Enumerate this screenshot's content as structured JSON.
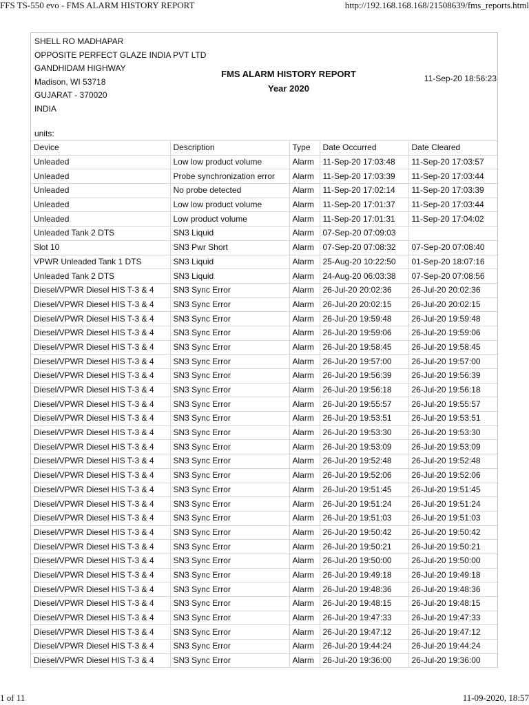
{
  "print_header": {
    "title": "FFS TS-550 evo - FMS ALARM HISTORY REPORT",
    "url": "http://192.168.168.168/21508639/fms_reports.html"
  },
  "print_footer": {
    "page": "1 of 11",
    "datetime": "11-09-2020, 18:57"
  },
  "report": {
    "address": [
      "SHELL RO MADHAPAR",
      "OPPOSITE PERFECT GLAZE INDIA PVT LTD",
      "GANDHIDAM HIGHWAY",
      "Madison, WI 53718",
      "GUJARAT - 370020",
      "INDIA"
    ],
    "title": "FMS ALARM HISTORY REPORT",
    "year": "Year 2020",
    "generated": "11-Sep-20 18:56:23",
    "units": "units:"
  },
  "table": {
    "columns": [
      "Device",
      "Description",
      "Type",
      "Date Occurred",
      "Date Cleared"
    ],
    "rows": [
      [
        "Unleaded",
        "Low low product volume",
        "Alarm",
        "11-Sep-20 17:03:48",
        "11-Sep-20 17:03:57"
      ],
      [
        "Unleaded",
        "Probe synchronization error",
        "Alarm",
        "11-Sep-20 17:03:39",
        "11-Sep-20 17:03:44"
      ],
      [
        "Unleaded",
        "No probe detected",
        "Alarm",
        "11-Sep-20 17:02:14",
        "11-Sep-20 17:03:39"
      ],
      [
        "Unleaded",
        "Low low product volume",
        "Alarm",
        "11-Sep-20 17:01:37",
        "11-Sep-20 17:03:44"
      ],
      [
        "Unleaded",
        "Low product volume",
        "Alarm",
        "11-Sep-20 17:01:31",
        "11-Sep-20 17:04:02"
      ],
      [
        "Unleaded Tank 2 DTS",
        "SN3 Liquid",
        "Alarm",
        "07-Sep-20 07:09:03",
        ""
      ],
      [
        "Slot 10",
        "SN3 Pwr Short",
        "Alarm",
        "07-Sep-20 07:08:32",
        "07-Sep-20 07:08:40"
      ],
      [
        "VPWR Unleaded Tank 1 DTS",
        "SN3 Liquid",
        "Alarm",
        "25-Aug-20 10:22:50",
        "01-Sep-20 18:07:16"
      ],
      [
        "Unleaded Tank 2 DTS",
        "SN3 Liquid",
        "Alarm",
        "24-Aug-20 06:03:38",
        "07-Sep-20 07:08:56"
      ],
      [
        "Diesel/VPWR Diesel HIS T-3 & 4",
        "SN3 Sync Error",
        "Alarm",
        "26-Jul-20 20:02:36",
        "26-Jul-20 20:02:36"
      ],
      [
        "Diesel/VPWR Diesel HIS T-3 & 4",
        "SN3 Sync Error",
        "Alarm",
        "26-Jul-20 20:02:15",
        "26-Jul-20 20:02:15"
      ],
      [
        "Diesel/VPWR Diesel HIS T-3 & 4",
        "SN3 Sync Error",
        "Alarm",
        "26-Jul-20 19:59:48",
        "26-Jul-20 19:59:48"
      ],
      [
        "Diesel/VPWR Diesel HIS T-3 & 4",
        "SN3 Sync Error",
        "Alarm",
        "26-Jul-20 19:59:06",
        "26-Jul-20 19:59:06"
      ],
      [
        "Diesel/VPWR Diesel HIS T-3 & 4",
        "SN3 Sync Error",
        "Alarm",
        "26-Jul-20 19:58:45",
        "26-Jul-20 19:58:45"
      ],
      [
        "Diesel/VPWR Diesel HIS T-3 & 4",
        "SN3 Sync Error",
        "Alarm",
        "26-Jul-20 19:57:00",
        "26-Jul-20 19:57:00"
      ],
      [
        "Diesel/VPWR Diesel HIS T-3 & 4",
        "SN3 Sync Error",
        "Alarm",
        "26-Jul-20 19:56:39",
        "26-Jul-20 19:56:39"
      ],
      [
        "Diesel/VPWR Diesel HIS T-3 & 4",
        "SN3 Sync Error",
        "Alarm",
        "26-Jul-20 19:56:18",
        "26-Jul-20 19:56:18"
      ],
      [
        "Diesel/VPWR Diesel HIS T-3 & 4",
        "SN3 Sync Error",
        "Alarm",
        "26-Jul-20 19:55:57",
        "26-Jul-20 19:55:57"
      ],
      [
        "Diesel/VPWR Diesel HIS T-3 & 4",
        "SN3 Sync Error",
        "Alarm",
        "26-Jul-20 19:53:51",
        "26-Jul-20 19:53:51"
      ],
      [
        "Diesel/VPWR Diesel HIS T-3 & 4",
        "SN3 Sync Error",
        "Alarm",
        "26-Jul-20 19:53:30",
        "26-Jul-20 19:53:30"
      ],
      [
        "Diesel/VPWR Diesel HIS T-3 & 4",
        "SN3 Sync Error",
        "Alarm",
        "26-Jul-20 19:53:09",
        "26-Jul-20 19:53:09"
      ],
      [
        "Diesel/VPWR Diesel HIS T-3 & 4",
        "SN3 Sync Error",
        "Alarm",
        "26-Jul-20 19:52:48",
        "26-Jul-20 19:52:48"
      ],
      [
        "Diesel/VPWR Diesel HIS T-3 & 4",
        "SN3 Sync Error",
        "Alarm",
        "26-Jul-20 19:52:06",
        "26-Jul-20 19:52:06"
      ],
      [
        "Diesel/VPWR Diesel HIS T-3 & 4",
        "SN3 Sync Error",
        "Alarm",
        "26-Jul-20 19:51:45",
        "26-Jul-20 19:51:45"
      ],
      [
        "Diesel/VPWR Diesel HIS T-3 & 4",
        "SN3 Sync Error",
        "Alarm",
        "26-Jul-20 19:51:24",
        "26-Jul-20 19:51:24"
      ],
      [
        "Diesel/VPWR Diesel HIS T-3 & 4",
        "SN3 Sync Error",
        "Alarm",
        "26-Jul-20 19:51:03",
        "26-Jul-20 19:51:03"
      ],
      [
        "Diesel/VPWR Diesel HIS T-3 & 4",
        "SN3 Sync Error",
        "Alarm",
        "26-Jul-20 19:50:42",
        "26-Jul-20 19:50:42"
      ],
      [
        "Diesel/VPWR Diesel HIS T-3 & 4",
        "SN3 Sync Error",
        "Alarm",
        "26-Jul-20 19:50:21",
        "26-Jul-20 19:50:21"
      ],
      [
        "Diesel/VPWR Diesel HIS T-3 & 4",
        "SN3 Sync Error",
        "Alarm",
        "26-Jul-20 19:50:00",
        "26-Jul-20 19:50:00"
      ],
      [
        "Diesel/VPWR Diesel HIS T-3 & 4",
        "SN3 Sync Error",
        "Alarm",
        "26-Jul-20 19:49:18",
        "26-Jul-20 19:49:18"
      ],
      [
        "Diesel/VPWR Diesel HIS T-3 & 4",
        "SN3 Sync Error",
        "Alarm",
        "26-Jul-20 19:48:36",
        "26-Jul-20 19:48:36"
      ],
      [
        "Diesel/VPWR Diesel HIS T-3 & 4",
        "SN3 Sync Error",
        "Alarm",
        "26-Jul-20 19:48:15",
        "26-Jul-20 19:48:15"
      ],
      [
        "Diesel/VPWR Diesel HIS T-3 & 4",
        "SN3 Sync Error",
        "Alarm",
        "26-Jul-20 19:47:33",
        "26-Jul-20 19:47:33"
      ],
      [
        "Diesel/VPWR Diesel HIS T-3 & 4",
        "SN3 Sync Error",
        "Alarm",
        "26-Jul-20 19:47:12",
        "26-Jul-20 19:47:12"
      ],
      [
        "Diesel/VPWR Diesel HIS T-3 & 4",
        "SN3 Sync Error",
        "Alarm",
        "26-Jul-20 19:44:24",
        "26-Jul-20 19:44:24"
      ],
      [
        "Diesel/VPWR Diesel HIS T-3 & 4",
        "SN3 Sync Error",
        "Alarm",
        "26-Jul-20 19:36:00",
        "26-Jul-20 19:36:00"
      ]
    ]
  }
}
